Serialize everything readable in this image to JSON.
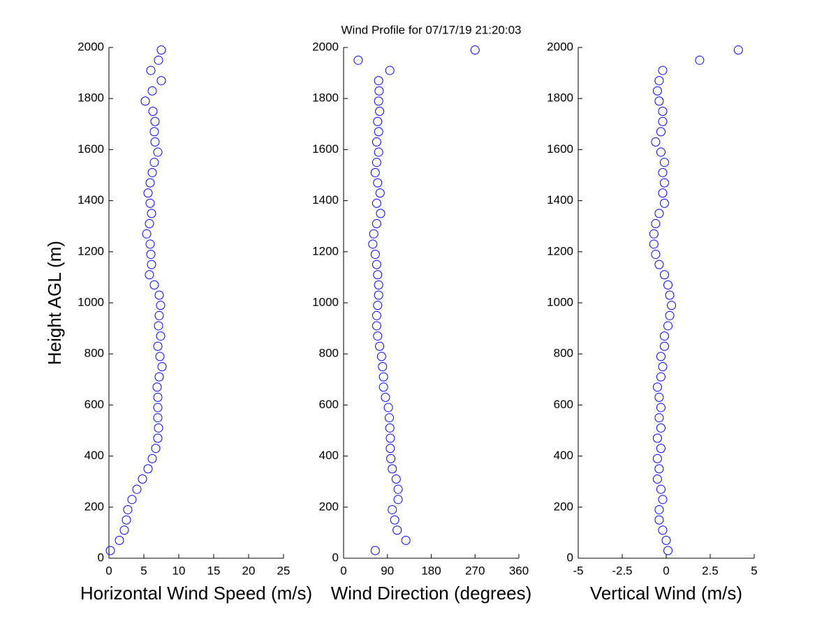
{
  "chart_data": [
    {
      "type": "scatter",
      "xlabel": "Horizontal Wind Speed (m/s)",
      "ylabel": "Height AGL (m)",
      "color": "#0000ff",
      "x": [
        0.2,
        1.5,
        2.2,
        2.5,
        2.7,
        3.3,
        4.0,
        4.8,
        5.6,
        6.2,
        6.7,
        7.0,
        7.1,
        7.0,
        7.0,
        7.0,
        6.9,
        7.2,
        7.6,
        7.3,
        7.0,
        7.4,
        7.1,
        7.2,
        7.4,
        7.2,
        6.5,
        5.8,
        6.1,
        6.0,
        5.9,
        5.4,
        5.8,
        6.1,
        5.9,
        5.6,
        5.9,
        6.2,
        6.5,
        7.0,
        6.6,
        6.5,
        6.6,
        6.3,
        5.2,
        6.2,
        7.5,
        6.0,
        7.1,
        7.5
      ],
      "y": [
        30,
        70,
        110,
        150,
        190,
        230,
        270,
        310,
        350,
        390,
        430,
        470,
        510,
        550,
        590,
        630,
        670,
        710,
        750,
        790,
        830,
        870,
        910,
        950,
        990,
        1030,
        1070,
        1110,
        1150,
        1190,
        1230,
        1270,
        1310,
        1350,
        1390,
        1430,
        1470,
        1510,
        1550,
        1590,
        1630,
        1670,
        1710,
        1750,
        1790,
        1830,
        1870,
        1910,
        1950,
        1990
      ],
      "xlim": [
        0,
        25
      ],
      "xticks": [
        0,
        5,
        10,
        15,
        20,
        25
      ],
      "ylim": [
        0,
        2000
      ],
      "yticks": [
        0,
        200,
        400,
        600,
        800,
        1000,
        1200,
        1400,
        1600,
        1800,
        2000
      ]
    },
    {
      "type": "scatter",
      "title": "Wind Profile for  07/17/19 21:20:03",
      "xlabel": "Wind Direction (degrees)",
      "color": "#0000ff",
      "x": [
        65,
        128,
        110,
        105,
        100,
        112,
        112,
        108,
        100,
        97,
        96,
        96,
        95,
        94,
        92,
        86,
        82,
        82,
        80,
        78,
        74,
        70,
        68,
        68,
        70,
        72,
        72,
        70,
        68,
        65,
        60,
        62,
        68,
        76,
        68,
        75,
        70,
        65,
        68,
        72,
        68,
        72,
        70,
        74,
        72,
        73,
        72,
        95,
        30,
        270
      ],
      "y": [
        30,
        70,
        110,
        150,
        190,
        230,
        270,
        310,
        350,
        390,
        430,
        470,
        510,
        550,
        590,
        630,
        670,
        710,
        750,
        790,
        830,
        870,
        910,
        950,
        990,
        1030,
        1070,
        1110,
        1150,
        1190,
        1230,
        1270,
        1310,
        1350,
        1390,
        1430,
        1470,
        1510,
        1550,
        1590,
        1630,
        1670,
        1710,
        1750,
        1790,
        1830,
        1870,
        1910,
        1950,
        1990
      ],
      "xlim": [
        0,
        360
      ],
      "xticks": [
        0,
        90,
        180,
        270,
        360
      ],
      "ylim": [
        0,
        2000
      ],
      "yticks": [
        0,
        200,
        400,
        600,
        800,
        1000,
        1200,
        1400,
        1600,
        1800,
        2000
      ]
    },
    {
      "type": "scatter",
      "xlabel": "Vertical Wind (m/s)",
      "color": "#0000ff",
      "x": [
        0.1,
        0.0,
        -0.2,
        -0.4,
        -0.4,
        -0.2,
        -0.3,
        -0.5,
        -0.4,
        -0.5,
        -0.3,
        -0.5,
        -0.3,
        -0.4,
        -0.3,
        -0.4,
        -0.5,
        -0.3,
        -0.2,
        -0.3,
        -0.1,
        -0.1,
        0.1,
        0.2,
        0.3,
        0.2,
        0.1,
        -0.1,
        -0.4,
        -0.6,
        -0.7,
        -0.7,
        -0.6,
        -0.4,
        -0.1,
        -0.2,
        -0.1,
        -0.2,
        -0.1,
        -0.3,
        -0.6,
        -0.3,
        -0.2,
        -0.2,
        -0.4,
        -0.5,
        -0.4,
        -0.2,
        1.9,
        4.1
      ],
      "y": [
        30,
        70,
        110,
        150,
        190,
        230,
        270,
        310,
        350,
        390,
        430,
        470,
        510,
        550,
        590,
        630,
        670,
        710,
        750,
        790,
        830,
        870,
        910,
        950,
        990,
        1030,
        1070,
        1110,
        1150,
        1190,
        1230,
        1270,
        1310,
        1350,
        1390,
        1430,
        1470,
        1510,
        1550,
        1590,
        1630,
        1670,
        1710,
        1750,
        1790,
        1830,
        1870,
        1910,
        1950,
        1990
      ],
      "xlim": [
        -5,
        5
      ],
      "xticks": [
        -5,
        -2.5,
        0,
        2.5,
        5
      ],
      "ylim": [
        0,
        2000
      ],
      "yticks": [
        0,
        200,
        400,
        600,
        800,
        1000,
        1200,
        1400,
        1600,
        1800,
        2000
      ]
    }
  ]
}
